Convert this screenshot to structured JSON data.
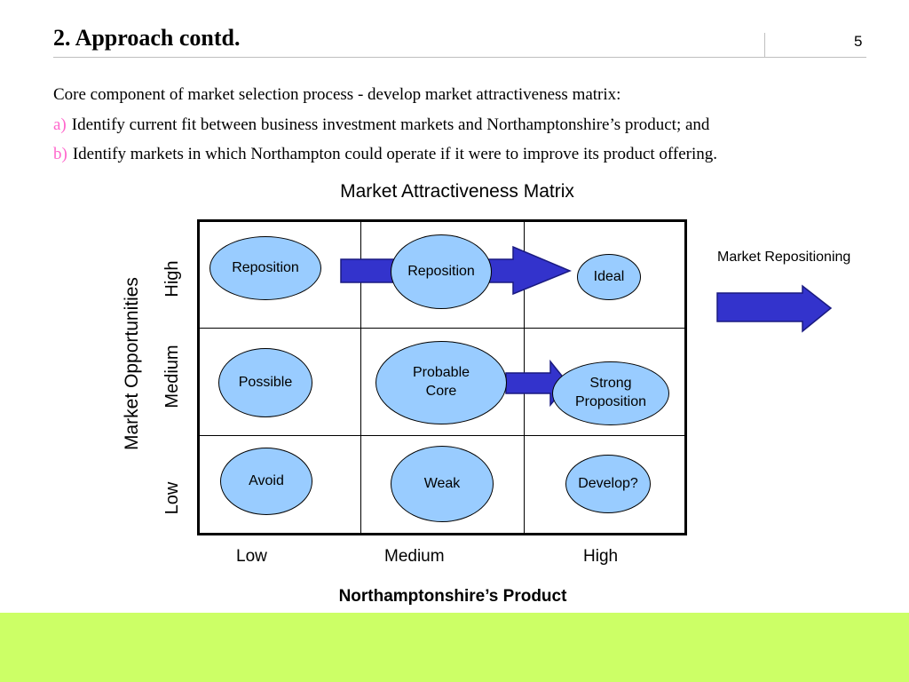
{
  "header": {
    "title": "2.  Approach contd.",
    "page_number": "5"
  },
  "body": {
    "intro": "Core component of market selection process - develop market attractiveness matrix:",
    "items": [
      {
        "marker": "a)",
        "text": "Identify current fit between business investment markets and Northamptonshire’s product; and"
      },
      {
        "marker": "b)",
        "text": "Identify markets in which Northampton could operate if it were to improve its product offering."
      }
    ]
  },
  "matrix": {
    "title": "Market Attractiveness Matrix",
    "y_axis_title": "Market Opportunities",
    "x_axis_title": "Northamptonshire’s Product",
    "rows": [
      "High",
      "Medium",
      "Low"
    ],
    "columns": [
      "Low",
      "Medium",
      "High"
    ],
    "cells": [
      [
        "Reposition",
        "Reposition",
        "Ideal"
      ],
      [
        "Possible",
        "Probable\nCore",
        "Strong\nProposition"
      ],
      [
        "Avoid",
        "Weak",
        "Develop?"
      ]
    ],
    "side_arrow_label": "Market Repositioning"
  },
  "colors": {
    "ellipse_fill": "#99ccff",
    "arrow_fill": "#3333cc",
    "band": "#ccff66",
    "bullet_marker": "#ff66cc"
  }
}
